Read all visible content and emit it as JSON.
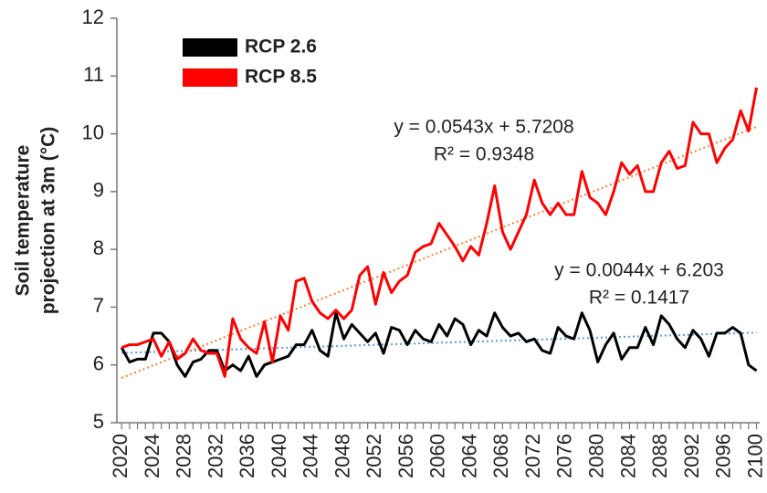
{
  "chart_data": {
    "type": "line",
    "ylabel": [
      "Soil temperature",
      "projection at 3m (°C)"
    ],
    "x": [
      2020,
      2021,
      2022,
      2023,
      2024,
      2025,
      2026,
      2027,
      2028,
      2029,
      2030,
      2031,
      2032,
      2033,
      2034,
      2035,
      2036,
      2037,
      2038,
      2039,
      2040,
      2041,
      2042,
      2043,
      2044,
      2045,
      2046,
      2047,
      2048,
      2049,
      2050,
      2051,
      2052,
      2053,
      2054,
      2055,
      2056,
      2057,
      2058,
      2059,
      2060,
      2061,
      2062,
      2063,
      2064,
      2065,
      2066,
      2067,
      2068,
      2069,
      2070,
      2071,
      2072,
      2073,
      2074,
      2075,
      2076,
      2077,
      2078,
      2079,
      2080,
      2081,
      2082,
      2083,
      2084,
      2085,
      2086,
      2087,
      2088,
      2089,
      2090,
      2091,
      2092,
      2093,
      2094,
      2095,
      2096,
      2097,
      2098,
      2099,
      2100
    ],
    "series": [
      {
        "name": "RCP 2.6",
        "color": "#000000",
        "values": [
          6.3,
          6.05,
          6.1,
          6.1,
          6.55,
          6.55,
          6.4,
          6.0,
          5.8,
          6.05,
          6.1,
          6.25,
          6.25,
          5.9,
          6.0,
          5.9,
          6.15,
          5.8,
          6.0,
          6.05,
          6.1,
          6.15,
          6.35,
          6.35,
          6.6,
          6.25,
          6.15,
          6.9,
          6.45,
          6.7,
          6.55,
          6.4,
          6.55,
          6.2,
          6.65,
          6.6,
          6.35,
          6.6,
          6.45,
          6.4,
          6.7,
          6.5,
          6.8,
          6.7,
          6.35,
          6.6,
          6.5,
          6.9,
          6.65,
          6.5,
          6.55,
          6.4,
          6.45,
          6.25,
          6.2,
          6.65,
          6.5,
          6.45,
          6.9,
          6.6,
          6.05,
          6.35,
          6.55,
          6.1,
          6.3,
          6.3,
          6.65,
          6.35,
          6.85,
          6.7,
          6.45,
          6.3,
          6.6,
          6.45,
          6.15,
          6.55,
          6.55,
          6.65,
          6.55,
          6.0,
          5.9
        ],
        "trendline": {
          "equation": "y = 0.0044x + 6.203",
          "r2": "R² = 0.1417",
          "color": "#5b9bd5"
        }
      },
      {
        "name": "RCP 8.5",
        "color": "#ff0000",
        "values": [
          6.3,
          6.35,
          6.35,
          6.4,
          6.45,
          6.15,
          6.4,
          6.1,
          6.2,
          6.45,
          6.25,
          6.2,
          6.2,
          5.8,
          6.8,
          6.45,
          6.3,
          6.2,
          6.75,
          6.05,
          6.85,
          6.6,
          7.45,
          7.5,
          7.1,
          6.9,
          6.8,
          6.95,
          6.8,
          6.95,
          7.55,
          7.7,
          7.05,
          7.6,
          7.25,
          7.45,
          7.55,
          7.95,
          8.05,
          8.1,
          8.45,
          8.25,
          8.05,
          7.8,
          8.05,
          7.9,
          8.45,
          9.1,
          8.3,
          8.0,
          8.3,
          8.6,
          9.2,
          8.8,
          8.6,
          8.8,
          8.6,
          8.6,
          9.35,
          8.9,
          8.8,
          8.6,
          9.0,
          9.5,
          9.3,
          9.45,
          9.0,
          9.0,
          9.5,
          9.7,
          9.4,
          9.45,
          10.2,
          10.0,
          10.0,
          9.5,
          9.75,
          9.9,
          10.4,
          10.05,
          10.8
        ],
        "trendline": {
          "equation": "y = 0.0543x + 5.7208",
          "r2": "R² = 0.9348",
          "color": "#f0823c"
        }
      }
    ],
    "xlim": [
      2019.4,
      2100.4
    ],
    "xticks": [
      2020,
      2024,
      2028,
      2032,
      2036,
      2040,
      2044,
      2048,
      2052,
      2056,
      2060,
      2064,
      2068,
      2072,
      2076,
      2080,
      2084,
      2088,
      2092,
      2096,
      2100
    ],
    "ylim": [
      5,
      12
    ],
    "yticks": [
      5,
      6,
      7,
      8,
      9,
      10,
      11,
      12
    ],
    "legend": "upper left"
  }
}
